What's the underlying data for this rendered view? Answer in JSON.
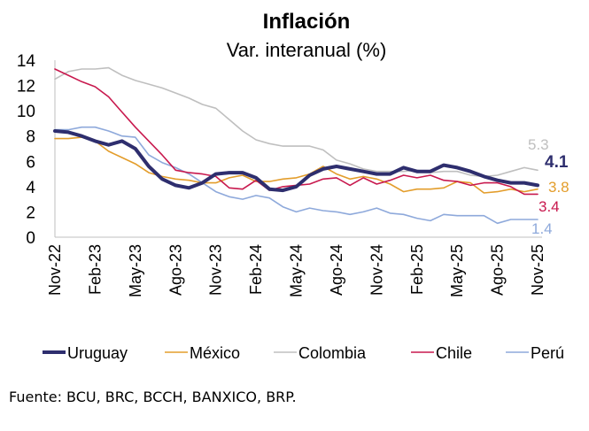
{
  "chart_data": {
    "type": "line",
    "title": "Inflación",
    "subtitle": "Var. interanual (%)",
    "xlabel": "",
    "ylabel": "",
    "ylim": [
      0,
      14
    ],
    "yticks": [
      0,
      2,
      4,
      6,
      8,
      10,
      12,
      14
    ],
    "x": [
      "Nov-22",
      "Dic-22",
      "Ene-23",
      "Feb-23",
      "Mar-23",
      "Abr-23",
      "May-23",
      "Jun-23",
      "Jul-23",
      "Ago-23",
      "Sep-23",
      "Oct-23",
      "Nov-23",
      "Dic-23",
      "Ene-24",
      "Feb-24",
      "Mar-24",
      "Abr-24",
      "May-24",
      "Jun-24",
      "Jul-24",
      "Ago-24",
      "Sep-24",
      "Oct-24",
      "Nov-24",
      "Dic-24",
      "Ene-25",
      "Feb-25",
      "Mar-25",
      "Abr-25",
      "May-25",
      "Jun-25",
      "Jul-25",
      "Ago-25",
      "Sep-25",
      "Oct-25",
      "Nov-25"
    ],
    "xtick_labels": [
      "Nov-22",
      "Feb-23",
      "May-23",
      "Ago-23",
      "Nov-23",
      "Feb-24",
      "May-24",
      "Ago-24",
      "Nov-24",
      "Feb-25",
      "May-25",
      "Ago-25",
      "Nov-25"
    ],
    "grid": false,
    "legend_position": "bottom",
    "series": [
      {
        "name": "Uruguay",
        "color": "#2E2E6E",
        "end_label": "4.1",
        "values": [
          8.4,
          8.3,
          8.0,
          7.6,
          7.3,
          7.6,
          7.0,
          5.6,
          4.6,
          4.1,
          3.9,
          4.3,
          5.0,
          5.1,
          5.1,
          4.7,
          3.8,
          3.7,
          4.0,
          4.9,
          5.4,
          5.6,
          5.4,
          5.2,
          5.0,
          5.0,
          5.5,
          5.2,
          5.2,
          5.7,
          5.5,
          5.2,
          4.8,
          4.5,
          4.3,
          4.3,
          4.1
        ]
      },
      {
        "name": "México",
        "color": "#E39D2B",
        "end_label": "3.8",
        "values": [
          7.8,
          7.8,
          7.9,
          7.6,
          6.8,
          6.3,
          5.8,
          5.1,
          4.8,
          4.6,
          4.5,
          4.3,
          4.3,
          4.7,
          4.9,
          4.4,
          4.4,
          4.6,
          4.7,
          5.0,
          5.6,
          5.0,
          4.6,
          4.8,
          4.6,
          4.2,
          3.6,
          3.8,
          3.8,
          3.9,
          4.4,
          4.3,
          3.5,
          3.6,
          3.8,
          3.6,
          3.8
        ]
      },
      {
        "name": "Colombia",
        "color": "#BFBFBF",
        "end_label": "5.3",
        "values": [
          12.5,
          13.1,
          13.3,
          13.3,
          13.4,
          12.8,
          12.4,
          12.1,
          11.8,
          11.4,
          11.0,
          10.5,
          10.2,
          9.3,
          8.4,
          7.7,
          7.4,
          7.2,
          7.2,
          7.2,
          6.9,
          6.1,
          5.8,
          5.4,
          5.2,
          5.2,
          5.2,
          5.3,
          5.1,
          5.2,
          5.2,
          4.9,
          4.8,
          4.9,
          5.2,
          5.5,
          5.3
        ]
      },
      {
        "name": "Chile",
        "color": "#C8194E",
        "end_label": "3.4",
        "values": [
          13.3,
          12.8,
          12.3,
          11.9,
          11.1,
          9.9,
          8.7,
          7.6,
          6.5,
          5.3,
          5.1,
          5.0,
          4.8,
          3.9,
          3.8,
          4.5,
          3.7,
          4.0,
          4.1,
          4.2,
          4.6,
          4.7,
          4.1,
          4.7,
          4.2,
          4.5,
          4.9,
          4.7,
          4.9,
          4.5,
          4.4,
          4.1,
          4.3,
          4.3,
          4.0,
          3.4,
          3.4
        ]
      },
      {
        "name": "Perú",
        "color": "#8EA9DB",
        "end_label": "1.4",
        "values": [
          8.5,
          8.5,
          8.7,
          8.7,
          8.4,
          8.0,
          7.9,
          6.5,
          5.9,
          5.5,
          5.0,
          4.3,
          3.6,
          3.2,
          3.0,
          3.3,
          3.1,
          2.4,
          2.0,
          2.3,
          2.1,
          2.0,
          1.8,
          2.0,
          2.3,
          1.9,
          1.8,
          1.5,
          1.3,
          1.8,
          1.7,
          1.7,
          1.7,
          1.1,
          1.4,
          1.4,
          1.4
        ]
      }
    ]
  },
  "source_note": "Fuente: BCU, BRC, BCCH, BANXICO, BRP."
}
